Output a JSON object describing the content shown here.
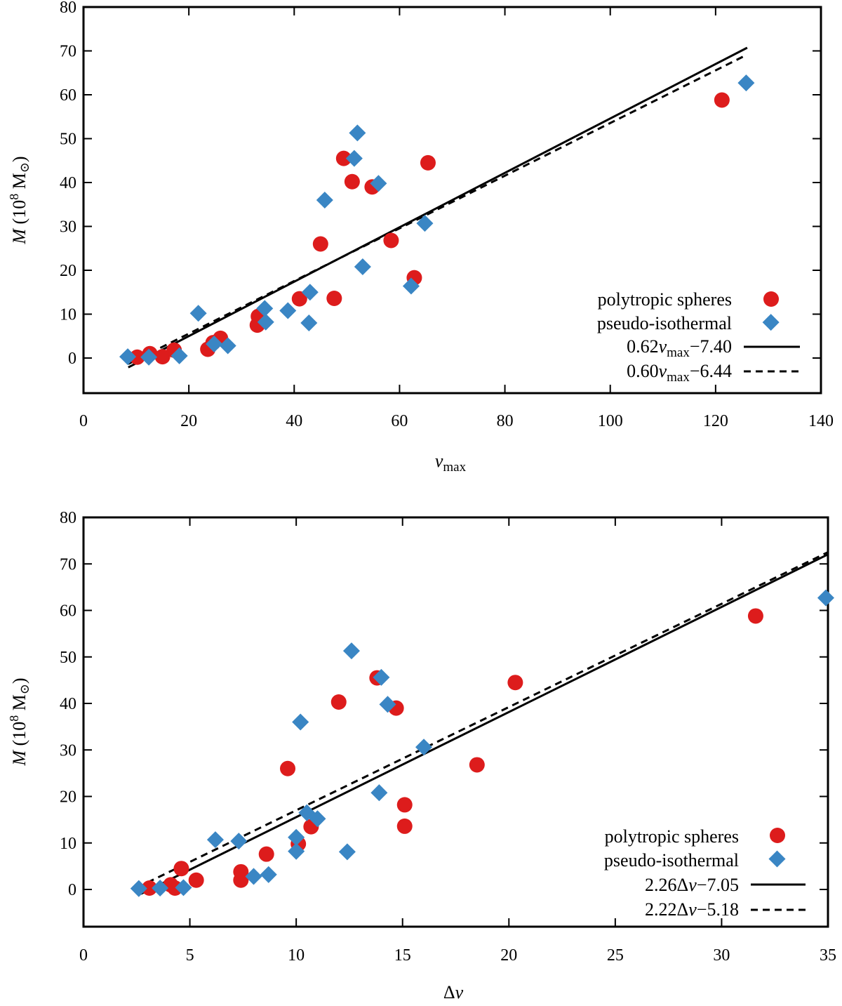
{
  "colors": {
    "poly": "#dd1c1c",
    "pseudo": "#3a86c4",
    "line": "#000000"
  },
  "chart_data": [
    {
      "type": "scatter",
      "xlabel": "v_max",
      "xlabel_main": "v",
      "xlabel_sub": "max",
      "ylabel_italic": "M",
      "ylabel_rest": " (10",
      "ylabel_exp": "8",
      "ylabel_unit": " M",
      "ylabel_sun": "⊙",
      "ylabel_close": ")",
      "xlim": [
        0,
        140
      ],
      "ylim": [
        -8,
        80
      ],
      "xticks": [
        0,
        20,
        40,
        60,
        80,
        100,
        120,
        140
      ],
      "yticks": [
        0,
        10,
        20,
        30,
        40,
        50,
        60,
        70,
        80
      ],
      "legend_position": "bottom-right",
      "series": [
        {
          "name": "polytropic spheres",
          "marker": "circle",
          "x": [
            10.2,
            12.6,
            15.0,
            17.2,
            23.6,
            24.6,
            26.0,
            33.0,
            33.2,
            41.0,
            45.0,
            47.6,
            49.4,
            51.0,
            54.8,
            58.4,
            62.8,
            65.4,
            121.2
          ],
          "y": [
            0.2,
            1.0,
            0.3,
            1.8,
            2.0,
            3.5,
            4.5,
            7.5,
            9.5,
            13.5,
            26.0,
            13.6,
            45.5,
            40.2,
            39.0,
            26.8,
            18.3,
            44.5,
            58.8
          ]
        },
        {
          "name": "pseudo-isothermal",
          "marker": "diamond",
          "x": [
            8.4,
            12.4,
            18.2,
            21.8,
            24.8,
            27.4,
            34.4,
            34.6,
            38.8,
            42.8,
            43.0,
            45.8,
            51.4,
            52.0,
            53.0,
            56.0,
            62.2,
            64.8,
            125.8
          ],
          "y": [
            0.3,
            0.2,
            0.5,
            10.2,
            3.2,
            2.8,
            11.3,
            8.2,
            10.8,
            8.0,
            15.0,
            36.0,
            45.5,
            51.3,
            20.8,
            39.8,
            16.4,
            30.7,
            62.7
          ]
        },
        {
          "name": "0.62v_max−7.40",
          "marker": "solid-line",
          "label_pre": "0.62",
          "label_main": "v",
          "label_sub": "max",
          "label_post": "−7.40",
          "slope": 0.62,
          "intercept": -7.4,
          "xrange": [
            8.5,
            126
          ]
        },
        {
          "name": "0.60v_max−6.44",
          "marker": "dashed-line",
          "label_pre": "0.60",
          "label_main": "v",
          "label_sub": "max",
          "label_post": "−6.44",
          "slope": 0.6,
          "intercept": -6.44,
          "xrange": [
            8.5,
            126
          ]
        }
      ]
    },
    {
      "type": "scatter",
      "xlabel": "Δv",
      "xlabel_main": "v",
      "xlabel_prefix": "Δ",
      "ylabel_italic": "M",
      "ylabel_rest": " (10",
      "ylabel_exp": "8",
      "ylabel_unit": " M",
      "ylabel_sun": "⊙",
      "ylabel_close": ")",
      "xlim": [
        0,
        35
      ],
      "ylim": [
        -8,
        80
      ],
      "xticks": [
        0,
        5,
        10,
        15,
        20,
        25,
        30,
        35
      ],
      "yticks": [
        0,
        10,
        20,
        30,
        40,
        50,
        60,
        70,
        80
      ],
      "legend_position": "bottom-right",
      "series": [
        {
          "name": "polytropic spheres",
          "marker": "circle",
          "x": [
            3.1,
            4.1,
            4.3,
            4.6,
            5.3,
            7.4,
            7.4,
            8.6,
            9.6,
            10.1,
            10.7,
            12.0,
            13.8,
            14.7,
            15.1,
            15.1,
            18.5,
            20.3,
            31.6
          ],
          "y": [
            0.3,
            1.0,
            0.3,
            4.5,
            2.0,
            3.8,
            2.0,
            7.6,
            26.0,
            9.8,
            13.5,
            40.3,
            45.5,
            39.0,
            18.2,
            13.6,
            26.8,
            44.5,
            58.8
          ]
        },
        {
          "name": "pseudo-isothermal",
          "marker": "diamond",
          "x": [
            2.6,
            3.6,
            4.7,
            6.2,
            7.3,
            8.0,
            8.7,
            10.0,
            10.0,
            10.2,
            10.5,
            11.0,
            12.4,
            12.6,
            13.9,
            14.0,
            14.3,
            16.0,
            34.9
          ],
          "y": [
            0.2,
            0.3,
            0.4,
            10.7,
            10.4,
            2.8,
            3.2,
            8.2,
            11.2,
            36.0,
            16.5,
            15.2,
            8.1,
            51.3,
            20.8,
            45.6,
            39.8,
            30.6,
            62.7
          ]
        },
        {
          "name": "2.26Δv−7.05",
          "marker": "solid-line",
          "label_pre": "2.26Δ",
          "label_main": "v",
          "label_post": "−7.05",
          "slope": 2.26,
          "intercept": -7.05,
          "xrange": [
            2.7,
            35
          ]
        },
        {
          "name": "2.22Δv−5.18",
          "marker": "dashed-line",
          "label_pre": "2.22Δ",
          "label_main": "v",
          "label_post": "−5.18",
          "slope": 2.22,
          "intercept": -5.18,
          "xrange": [
            2.5,
            35
          ]
        }
      ]
    }
  ]
}
